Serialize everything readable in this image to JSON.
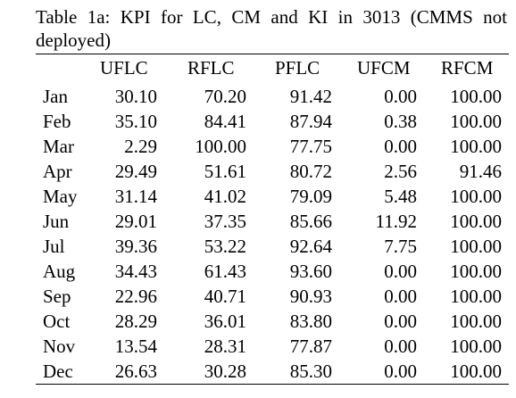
{
  "caption": "Table 1a: KPI for LC, CM and KI in 3013 (CMMS not deployed)",
  "table": {
    "headers": [
      "UFLC",
      "RFLC",
      "PFLC",
      "UFCM",
      "RFCM"
    ],
    "rows": [
      {
        "month": "Jan",
        "values": [
          "30.10",
          "70.20",
          "91.42",
          "0.00",
          "100.00"
        ]
      },
      {
        "month": "Feb",
        "values": [
          "35.10",
          "84.41",
          "87.94",
          "0.38",
          "100.00"
        ]
      },
      {
        "month": "Mar",
        "values": [
          "2.29",
          "100.00",
          "77.75",
          "0.00",
          "100.00"
        ]
      },
      {
        "month": "Apr",
        "values": [
          "29.49",
          "51.61",
          "80.72",
          "2.56",
          "91.46"
        ]
      },
      {
        "month": "May",
        "values": [
          "31.14",
          "41.02",
          "79.09",
          "5.48",
          "100.00"
        ]
      },
      {
        "month": "Jun",
        "values": [
          "29.01",
          "37.35",
          "85.66",
          "11.92",
          "100.00"
        ]
      },
      {
        "month": "Jul",
        "values": [
          "39.36",
          "53.22",
          "92.64",
          "7.75",
          "100.00"
        ]
      },
      {
        "month": "Aug",
        "values": [
          "34.43",
          "61.43",
          "93.60",
          "0.00",
          "100.00"
        ]
      },
      {
        "month": "Sep",
        "values": [
          "22.96",
          "40.71",
          "90.93",
          "0.00",
          "100.00"
        ]
      },
      {
        "month": "Oct",
        "values": [
          "28.29",
          "36.01",
          "83.80",
          "0.00",
          "100.00"
        ]
      },
      {
        "month": "Nov",
        "values": [
          "13.54",
          "28.31",
          "77.87",
          "0.00",
          "100.00"
        ]
      },
      {
        "month": "Dec",
        "values": [
          "26.63",
          "30.28",
          "85.30",
          "0.00",
          "100.00"
        ]
      }
    ]
  }
}
